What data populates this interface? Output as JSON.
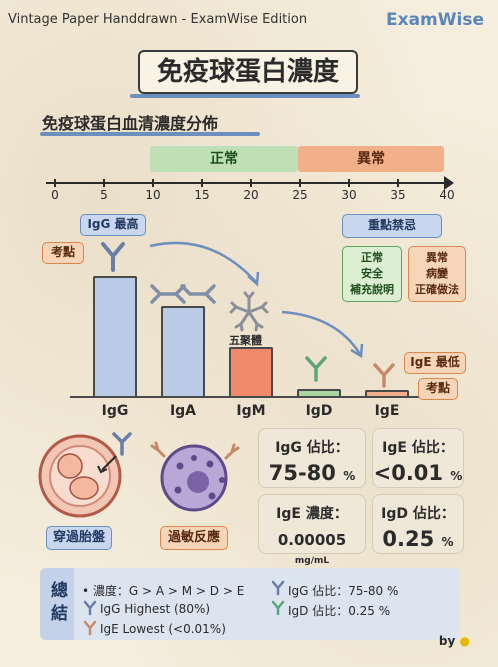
{
  "header": {
    "left": "Vintage Paper Handdrawn - ExamWise Edition",
    "brand": "ExamWise"
  },
  "title": "免疫球蛋白濃度",
  "subtitle": "免疫球蛋白血清濃度分佈",
  "scale": {
    "normal_label": "正常",
    "abnormal_label": "異常",
    "ticks": [
      "0",
      "5",
      "10",
      "15",
      "20",
      "25",
      "30",
      "35",
      "40"
    ]
  },
  "tags": {
    "igg_highest": "IgG 最高",
    "exam_point_left": "考點",
    "pentamer": "五聚體",
    "ige_lowest": "IgE 最低",
    "exam_point_right": "考點",
    "key_taboo": "重點禁忌",
    "normal_box": [
      "正常",
      "安全",
      "補充說明"
    ],
    "abnormal_box": [
      "異常",
      "病變",
      "正確做法"
    ]
  },
  "bars": [
    {
      "label": "IgG",
      "value": 80,
      "color": "#b9cbe6"
    },
    {
      "label": "IgA",
      "value": 60,
      "color": "#b9cbe6"
    },
    {
      "label": "IgM",
      "value": 33,
      "color": "#f08a6a"
    },
    {
      "label": "IgD",
      "value": 5,
      "color": "#a9d6a0"
    },
    {
      "label": "IgE",
      "value": 2,
      "color": "#f2b08a"
    }
  ],
  "illustrations": {
    "placenta": "穿過胎盤",
    "allergy": "過敏反應"
  },
  "stats": [
    {
      "label": "IgG 佔比：",
      "value": "75-80",
      "unit": "%"
    },
    {
      "label": "IgE 佔比：",
      "value": "<0.01",
      "unit": "%"
    },
    {
      "label": "IgE 濃度：",
      "value": "0.00005",
      "unit": "mg/mL"
    },
    {
      "label": "IgD 佔比：",
      "value": "0.25",
      "unit": "%"
    }
  ],
  "summary": {
    "side": "總結",
    "items": [
      "• 濃度：G > A > M > D > E",
      "IgG Highest (80%)",
      "IgE Lowest (<0.01%)",
      "IgG 佔比：75-80 %",
      "IgD 佔比：0.25 %"
    ]
  },
  "byline": "by",
  "colors": {
    "blue": "#6d8fc0",
    "green": "#5fa45a",
    "orange": "#d9874c"
  }
}
